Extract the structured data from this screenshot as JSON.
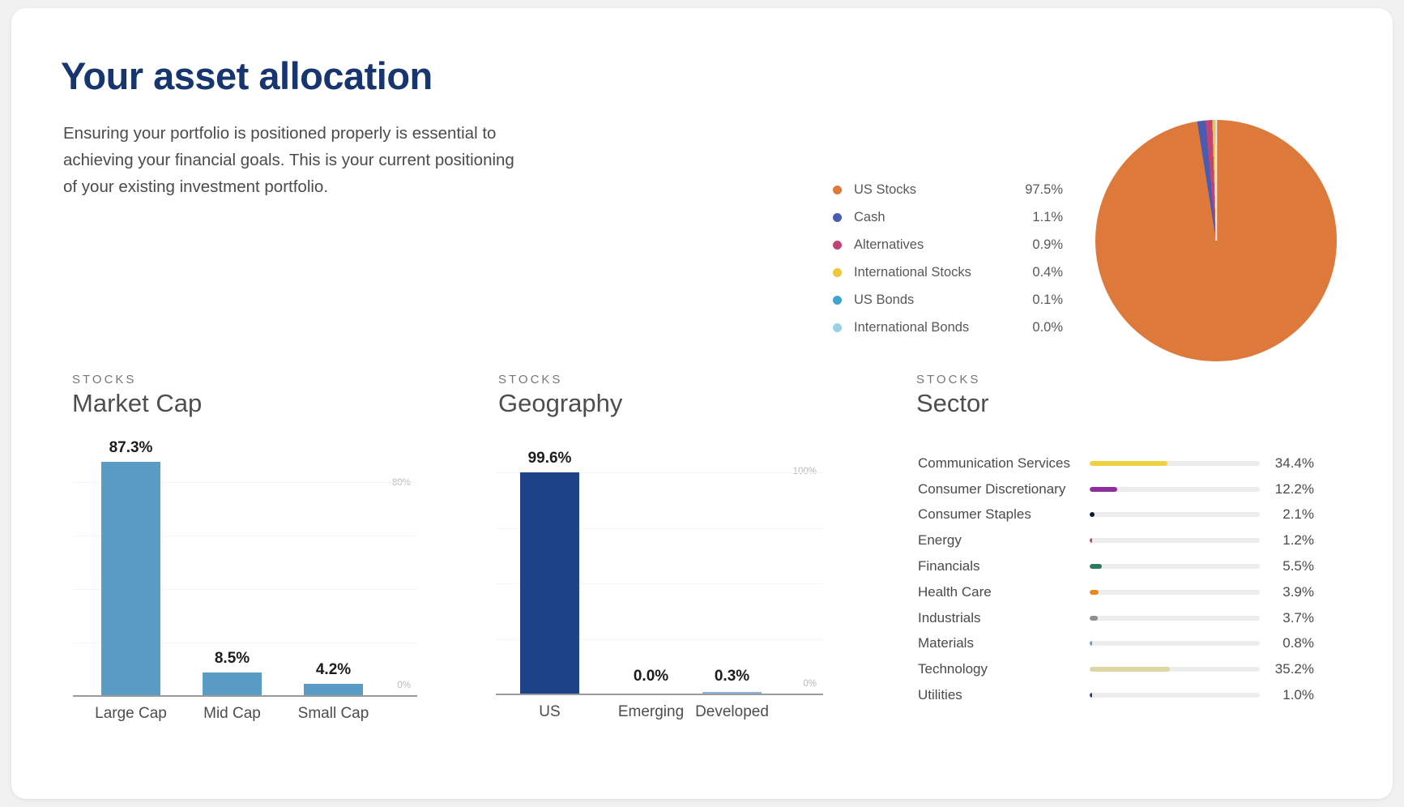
{
  "page": {
    "title": "Your asset allocation",
    "description": "Ensuring your portfolio is positioned properly is essential to achieving your financial goals. This is your current positioning of your existing investment portfolio."
  },
  "allocation": {
    "legend": [
      {
        "label": "US Stocks",
        "value": "97.5%",
        "pct": 97.5,
        "color": "#dd7a3b"
      },
      {
        "label": "Cash",
        "value": "1.1%",
        "pct": 1.1,
        "color": "#4a5cb0"
      },
      {
        "label": "Alternatives",
        "value": "0.9%",
        "pct": 0.9,
        "color": "#c04576"
      },
      {
        "label": "International Stocks",
        "value": "0.4%",
        "pct": 0.4,
        "color": "#eec73e"
      },
      {
        "label": "US Bonds",
        "value": "0.1%",
        "pct": 0.1,
        "color": "#41a3cf"
      },
      {
        "label": "International Bonds",
        "value": "0.0%",
        "pct": 0.0,
        "color": "#9ad2e4"
      }
    ]
  },
  "sections": {
    "market_cap": {
      "eyebrow": "STOCKS",
      "title": "Market Cap",
      "bar_color": "#5b9cc6",
      "axis_top": "80%",
      "axis_bottom": "0%",
      "bars": [
        {
          "label": "Large Cap",
          "value": "87.3%",
          "pct": 87.3
        },
        {
          "label": "Mid Cap",
          "value": "8.5%",
          "pct": 8.5
        },
        {
          "label": "Small Cap",
          "value": "4.2%",
          "pct": 4.2
        }
      ]
    },
    "geography": {
      "eyebrow": "STOCKS",
      "title": "Geography",
      "bar_color": "#1e4388",
      "axis_top": "100%",
      "axis_bottom": "0%",
      "bars": [
        {
          "label": "US",
          "value": "99.6%",
          "pct": 99.6
        },
        {
          "label": "Emerging",
          "value": "0.0%",
          "pct": 0.0
        },
        {
          "label": "Developed",
          "value": "0.3%",
          "pct": 0.3,
          "color": "#8fb3dc"
        }
      ]
    },
    "sector": {
      "eyebrow": "STOCKS",
      "title": "Sector",
      "rows": [
        {
          "label": "Communication Services",
          "value": "34.4%",
          "pct": 34.4,
          "color": "#efd23d"
        },
        {
          "label": "Consumer Discretionary",
          "value": "12.2%",
          "pct": 12.2,
          "color": "#8f2f9e"
        },
        {
          "label": "Consumer Staples",
          "value": "2.1%",
          "pct": 2.1,
          "color": "#101830"
        },
        {
          "label": "Energy",
          "value": "1.2%",
          "pct": 1.2,
          "color": "#cf3f72"
        },
        {
          "label": "Financials",
          "value": "5.5%",
          "pct": 5.5,
          "color": "#2e7a5e"
        },
        {
          "label": "Health Care",
          "value": "3.9%",
          "pct": 3.9,
          "color": "#e8891f"
        },
        {
          "label": "Industrials",
          "value": "3.7%",
          "pct": 3.7,
          "color": "#8f8f8f"
        },
        {
          "label": "Materials",
          "value": "0.8%",
          "pct": 0.8,
          "color": "#54a6d8"
        },
        {
          "label": "Technology",
          "value": "35.2%",
          "pct": 35.2,
          "color": "#ddd7a3"
        },
        {
          "label": "Utilities",
          "value": "1.0%",
          "pct": 1.0,
          "color": "#27408f"
        }
      ]
    }
  },
  "chart_data": [
    {
      "type": "pie",
      "title": "Your asset allocation",
      "categories": [
        "US Stocks",
        "Cash",
        "Alternatives",
        "International Stocks",
        "US Bonds",
        "International Bonds"
      ],
      "values": [
        97.5,
        1.1,
        0.9,
        0.4,
        0.1,
        0.0
      ],
      "colors": [
        "#dd7a3b",
        "#4a5cb0",
        "#c04576",
        "#eec73e",
        "#41a3cf",
        "#9ad2e4"
      ],
      "legend_position": "left"
    },
    {
      "type": "bar",
      "title": "Market Cap",
      "subtitle": "STOCKS",
      "categories": [
        "Large Cap",
        "Mid Cap",
        "Small Cap"
      ],
      "values": [
        87.3,
        8.5,
        4.2
      ],
      "xlabel": "",
      "ylabel": "",
      "ylim": [
        0,
        100
      ],
      "tick_labels_shown": [
        "0%",
        "80%"
      ],
      "grid": true
    },
    {
      "type": "bar",
      "title": "Geography",
      "subtitle": "STOCKS",
      "categories": [
        "US",
        "Emerging",
        "Developed"
      ],
      "values": [
        99.6,
        0.0,
        0.3
      ],
      "xlabel": "",
      "ylabel": "",
      "ylim": [
        0,
        120
      ],
      "tick_labels_shown": [
        "0%",
        "100%"
      ],
      "grid": true
    },
    {
      "type": "bar",
      "title": "Sector",
      "subtitle": "STOCKS",
      "orientation": "horizontal",
      "categories": [
        "Communication Services",
        "Consumer Discretionary",
        "Consumer Staples",
        "Energy",
        "Financials",
        "Health Care",
        "Industrials",
        "Materials",
        "Technology",
        "Utilities"
      ],
      "values": [
        34.4,
        12.2,
        2.1,
        1.2,
        5.5,
        3.9,
        3.7,
        0.8,
        35.2,
        1.0
      ],
      "xlim": [
        0,
        75
      ],
      "grid": false
    }
  ]
}
